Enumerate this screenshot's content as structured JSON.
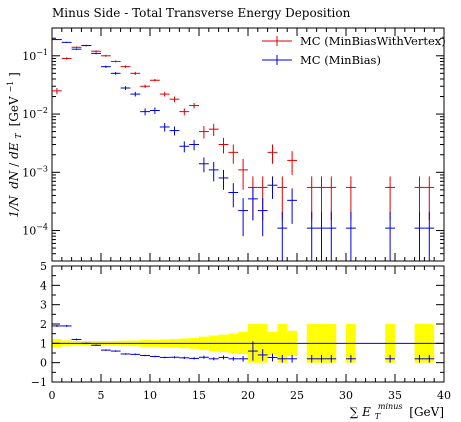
{
  "chart_data": [
    {
      "type": "scatter",
      "panel": "main",
      "title": "Minus Side - Total Transverse Energy Deposition",
      "ylabel": "1/N dN/dE_T [GeV^-1]",
      "ylabel_parts": {
        "a": "1/N",
        "b": "dN",
        "c": "/",
        "d": "dE",
        "e": "T",
        "f": "[GeV",
        "g": "−1",
        "h": "]"
      },
      "xlim": [
        0,
        40
      ],
      "ylim": [
        3e-05,
        0.3
      ],
      "yscale": "log",
      "grid": false,
      "legend_position": "top-right",
      "y_ticks": [
        {
          "value": 0.0001,
          "base": "10",
          "exp": "−4"
        },
        {
          "value": 0.001,
          "base": "10",
          "exp": "−3"
        },
        {
          "value": 0.01,
          "base": "10",
          "exp": "−2"
        },
        {
          "value": 0.1,
          "base": "10",
          "exp": "−1"
        }
      ],
      "series": [
        {
          "name": "MC (MinBiasWithVertex)",
          "color": "#e00000",
          "x": [
            0.5,
            1.5,
            2.5,
            3.5,
            4.5,
            5.5,
            6.5,
            7.5,
            8.5,
            9.5,
            10.5,
            11.5,
            12.5,
            13.5,
            14.5,
            15.5,
            16.5,
            17.5,
            18.5,
            19.5,
            20.5,
            21.5,
            22.5,
            23.5,
            24.5,
            26.5,
            27.5,
            28.5,
            30.5,
            34.5,
            37.5,
            38.5
          ],
          "y": [
            0.025,
            0.09,
            0.14,
            0.15,
            0.12,
            0.1,
            0.08,
            0.065,
            0.05,
            0.03,
            0.038,
            0.022,
            0.018,
            0.011,
            0.014,
            0.005,
            0.0055,
            0.003,
            0.0022,
            0.0011,
            0.00055,
            0.00055,
            0.0022,
            0.00055,
            0.0016,
            0.00055,
            0.00055,
            0.00055,
            0.00055,
            0.00055,
            0.00055,
            0.00055
          ],
          "yerr_lo": [
            0.003,
            0.004,
            0.004,
            0.004,
            0.004,
            0.004,
            0.003,
            0.003,
            0.003,
            0.002,
            0.002,
            0.002,
            0.002,
            0.0015,
            0.0015,
            0.0012,
            0.0013,
            0.0009,
            0.0008,
            0.0006,
            0.0004,
            0.0004,
            0.0008,
            0.0004,
            0.0007,
            0.0004,
            0.0004,
            0.0004,
            0.0004,
            0.0004,
            0.0004,
            0.0004
          ],
          "yerr_hi": [
            0.003,
            0.004,
            0.004,
            0.004,
            0.004,
            0.004,
            0.003,
            0.003,
            0.003,
            0.002,
            0.002,
            0.002,
            0.002,
            0.0015,
            0.0015,
            0.0012,
            0.0013,
            0.0009,
            0.0008,
            0.0006,
            0.0003,
            0.0003,
            0.0008,
            0.0003,
            0.0007,
            0.0003,
            0.0003,
            0.0003,
            0.0003,
            0.0003,
            0.0003,
            0.0003
          ]
        },
        {
          "name": "MC (MinBias)",
          "color": "#0000e0",
          "x": [
            0.5,
            1.5,
            2.5,
            3.5,
            4.5,
            5.5,
            6.5,
            7.5,
            8.5,
            9.5,
            10.5,
            11.5,
            12.5,
            13.5,
            14.5,
            15.5,
            16.5,
            17.5,
            18.5,
            19.5,
            20.5,
            21.5,
            22.5,
            23.5,
            24.5,
            26.5,
            27.5,
            28.5,
            30.5,
            34.5,
            37.5,
            38.5
          ],
          "y": [
            0.19,
            0.17,
            0.13,
            0.15,
            0.11,
            0.065,
            0.05,
            0.028,
            0.022,
            0.011,
            0.0115,
            0.006,
            0.0052,
            0.0028,
            0.003,
            0.0014,
            0.0011,
            0.0008,
            0.00045,
            0.00022,
            0.00035,
            0.00022,
            0.0006,
            0.00011,
            0.00033,
            0.00011,
            0.00011,
            0.00011,
            0.00011,
            0.00011,
            0.00011,
            0.00011
          ],
          "yerr_lo": [
            0.004,
            0.004,
            0.004,
            0.004,
            0.004,
            0.003,
            0.003,
            0.002,
            0.002,
            0.0015,
            0.0015,
            0.001,
            0.0009,
            0.0006,
            0.0006,
            0.0004,
            0.0004,
            0.0003,
            0.0002,
            0.00014,
            0.0002,
            0.00014,
            0.00025,
            9e-05,
            0.0002,
            9e-05,
            9e-05,
            9e-05,
            9e-05,
            9e-05,
            9e-05,
            9e-05
          ],
          "yerr_hi": [
            0.004,
            0.004,
            0.004,
            0.004,
            0.004,
            0.003,
            0.003,
            0.002,
            0.002,
            0.0015,
            0.0015,
            0.001,
            0.0009,
            0.0006,
            0.0006,
            0.0004,
            0.0004,
            0.0003,
            0.0002,
            0.00014,
            0.0002,
            0.00014,
            0.00025,
            0.0001,
            0.0002,
            0.0001,
            0.0001,
            0.0001,
            0.0001,
            0.0001,
            0.0001,
            0.0001
          ]
        }
      ]
    },
    {
      "type": "scatter",
      "panel": "ratio",
      "xlabel": "∑E_T^minus [GeV]",
      "xlabel_parts": {
        "sum": "∑",
        "e": "E",
        "sub": "T",
        "sup": "minus",
        "unit": "[GeV]"
      },
      "xlim": [
        0,
        40
      ],
      "ylim": [
        -1,
        5
      ],
      "x_ticks": [
        0,
        5,
        10,
        15,
        20,
        25,
        30,
        35,
        40
      ],
      "y_ticks": [
        -1,
        0,
        1,
        2,
        3,
        4,
        5
      ],
      "reference_line": 1,
      "band_color": "#ffff00",
      "band": {
        "x": [
          0.5,
          1.5,
          2.5,
          3.5,
          4.5,
          5.5,
          6.5,
          7.5,
          8.5,
          9.5,
          10.5,
          11.5,
          12.5,
          13.5,
          14.5,
          15.5,
          16.5,
          17.5,
          18.5,
          19.5,
          20.5,
          21.5,
          22.5,
          23.5,
          24.5,
          26.5,
          27.5,
          28.5,
          30.5,
          34.5,
          37.5,
          38.5
        ],
        "lo": [
          0.78,
          0.85,
          0.88,
          0.88,
          0.88,
          0.88,
          0.87,
          0.86,
          0.85,
          0.82,
          0.82,
          0.8,
          0.78,
          0.75,
          0.72,
          0.65,
          0.6,
          0.55,
          0.5,
          0.45,
          0.0,
          0.0,
          0.4,
          0.0,
          0.35,
          0.0,
          0.0,
          0.0,
          0.0,
          0.0,
          0.0,
          0.0
        ],
        "hi": [
          1.22,
          1.15,
          1.12,
          1.12,
          1.12,
          1.12,
          1.13,
          1.14,
          1.15,
          1.18,
          1.18,
          1.2,
          1.22,
          1.25,
          1.28,
          1.35,
          1.4,
          1.45,
          1.5,
          1.6,
          2.0,
          2.0,
          1.6,
          2.0,
          1.65,
          2.0,
          2.0,
          2.0,
          2.0,
          2.0,
          2.0,
          2.0
        ]
      },
      "ratio_points": {
        "color": "#0000e0",
        "x": [
          0.5,
          1.5,
          2.5,
          3.5,
          4.5,
          5.5,
          6.5,
          7.5,
          8.5,
          9.5,
          10.5,
          11.5,
          12.5,
          13.5,
          14.5,
          15.5,
          16.5,
          17.5,
          18.5,
          19.5,
          20.5,
          21.5,
          22.5,
          23.5,
          24.5,
          26.5,
          27.5,
          28.5,
          30.5,
          34.5,
          37.5,
          38.5
        ],
        "y": [
          1.9,
          1.9,
          1.2,
          1.0,
          0.9,
          0.65,
          0.6,
          0.45,
          0.43,
          0.37,
          0.32,
          0.27,
          0.28,
          0.25,
          0.22,
          0.28,
          0.2,
          0.27,
          0.2,
          0.2,
          0.6,
          0.4,
          0.27,
          0.2,
          0.2,
          0.2,
          0.2,
          0.2,
          0.2,
          0.2,
          0.2,
          0.2
        ],
        "err": [
          0.05,
          0.05,
          0.05,
          0.04,
          0.04,
          0.04,
          0.04,
          0.04,
          0.04,
          0.04,
          0.04,
          0.04,
          0.05,
          0.06,
          0.06,
          0.08,
          0.08,
          0.1,
          0.1,
          0.15,
          0.5,
          0.3,
          0.2,
          0.2,
          0.2,
          0.2,
          0.2,
          0.2,
          0.2,
          0.2,
          0.2,
          0.2
        ]
      }
    }
  ]
}
